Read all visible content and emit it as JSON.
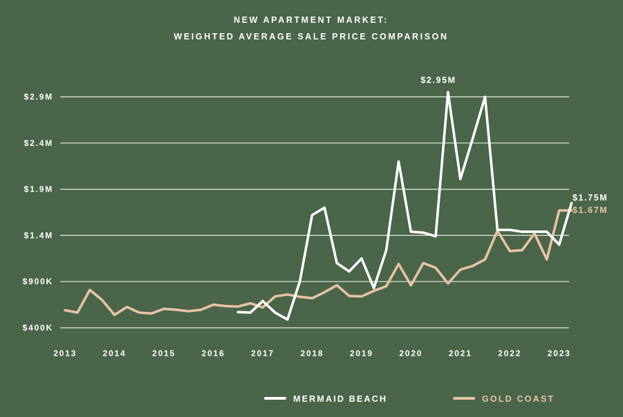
{
  "colors": {
    "background": "#4a654a",
    "grid": "#e8ede4",
    "text": "#ffffff",
    "mermaid": "#ffffff",
    "gold": "#e8c3a4"
  },
  "chart_data": {
    "type": "line",
    "title": [
      "NEW APARTMENT MARKET:",
      "WEIGHTED AVERAGE SALE PRICE COMPARISON"
    ],
    "xlabel": "",
    "ylabel": "",
    "x_tick_labels": [
      "2013",
      "2014",
      "2015",
      "2016",
      "2017",
      "2018",
      "2019",
      "2020",
      "2021",
      "2022",
      "2023"
    ],
    "x_ticks": [
      2013,
      2014,
      2015,
      2016,
      2017,
      2018,
      2019,
      2020,
      2021,
      2022,
      2023
    ],
    "y_tick_labels": [
      "$400K",
      "$900K",
      "$1.4M",
      "$1.9M",
      "$2.4M",
      "$2.9M"
    ],
    "y_ticks": [
      400000,
      900000,
      1400000,
      1900000,
      2400000,
      2900000
    ],
    "xlim": [
      2012.9,
      2023.2
    ],
    "ylim": [
      400000,
      2900000
    ],
    "grid": "horizontal",
    "legend_position": "bottom",
    "series": [
      {
        "name": "MERMAID BEACH",
        "color": "#ffffff",
        "x": [
          2016.5,
          2016.75,
          2017.0,
          2017.25,
          2017.5,
          2017.75,
          2018.0,
          2018.25,
          2018.5,
          2018.75,
          2019.0,
          2019.25,
          2019.5,
          2019.75,
          2020.0,
          2020.25,
          2020.5,
          2020.75,
          2021.0,
          2021.25,
          2021.5,
          2021.75,
          2022.0,
          2022.25,
          2022.5,
          2022.75,
          2023.0,
          2023.25
        ],
        "values": [
          570000,
          565000,
          690000,
          565000,
          490000,
          900000,
          1620000,
          1700000,
          1100000,
          1010000,
          1150000,
          830000,
          1240000,
          2200000,
          1440000,
          1430000,
          1390000,
          2950000,
          2010000,
          2450000,
          2900000,
          1460000,
          1460000,
          1440000,
          1440000,
          1440000,
          1300000,
          1750000
        ]
      },
      {
        "name": "GOLD COAST",
        "color": "#e8c3a4",
        "x": [
          2013.0,
          2013.25,
          2013.5,
          2013.75,
          2014.0,
          2014.25,
          2014.5,
          2014.75,
          2015.0,
          2015.25,
          2015.5,
          2015.75,
          2016.0,
          2016.25,
          2016.5,
          2016.75,
          2017.0,
          2017.25,
          2017.5,
          2017.75,
          2018.0,
          2018.25,
          2018.5,
          2018.75,
          2019.0,
          2019.25,
          2019.5,
          2019.75,
          2020.0,
          2020.25,
          2020.5,
          2020.75,
          2021.0,
          2021.25,
          2021.5,
          2021.75,
          2022.0,
          2022.25,
          2022.5,
          2022.75,
          2023.0,
          2023.25
        ],
        "values": [
          590000,
          565000,
          810000,
          700000,
          540000,
          625000,
          565000,
          555000,
          605000,
          595000,
          580000,
          595000,
          650000,
          635000,
          630000,
          665000,
          620000,
          740000,
          760000,
          735000,
          720000,
          785000,
          860000,
          745000,
          740000,
          800000,
          850000,
          1090000,
          860000,
          1100000,
          1050000,
          880000,
          1030000,
          1070000,
          1140000,
          1450000,
          1230000,
          1240000,
          1420000,
          1140000,
          1670000,
          1670000
        ]
      }
    ],
    "annotations": [
      {
        "text": "$2.95M",
        "series": "MERMAID BEACH"
      },
      {
        "text": "$1.75M",
        "series": "MERMAID BEACH"
      },
      {
        "text": "$1.67M",
        "series": "GOLD COAST"
      }
    ]
  },
  "legend": [
    {
      "label": "MERMAID BEACH",
      "color": "#ffffff"
    },
    {
      "label": "GOLD COAST",
      "color": "#e8c3a4"
    }
  ]
}
